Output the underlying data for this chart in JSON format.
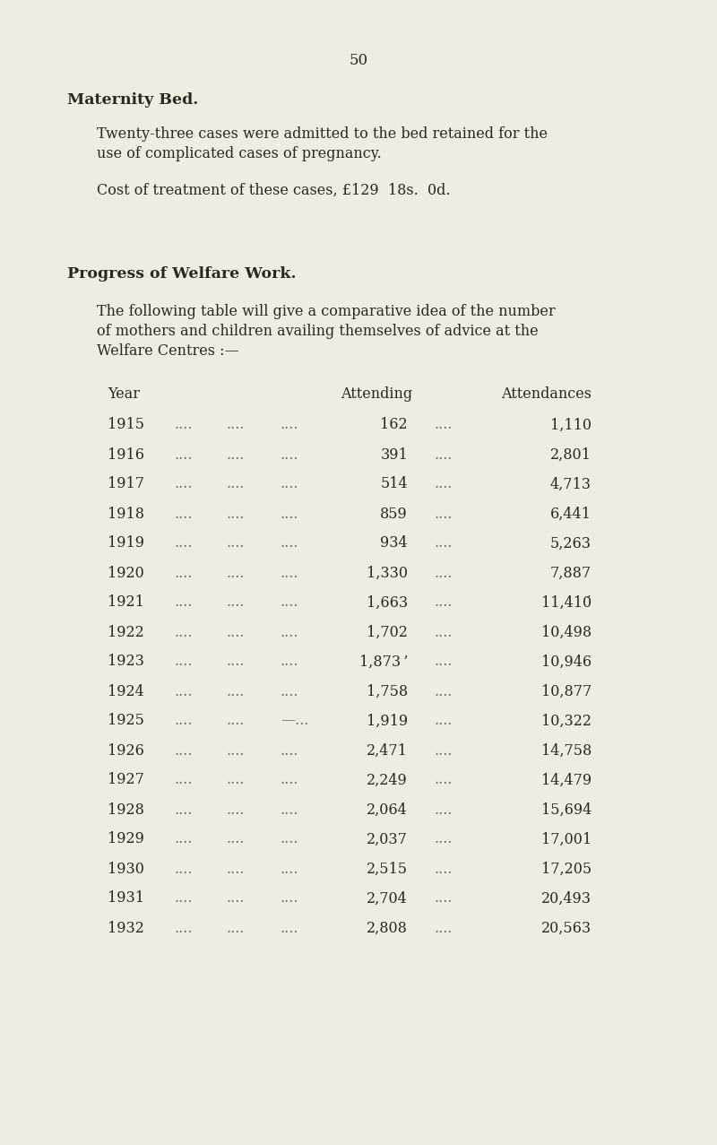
{
  "background_color": "#f0ece0",
  "page_number": "50",
  "section_title": "Maternity Bed.",
  "para1_lines": [
    "Twenty-three cases were admitted to the bed retained for the",
    "use of complicated cases of pregnancy."
  ],
  "para2": "Cost of treatment of these cases, £129  18s.  0d.",
  "section2_title": "Progress of Welfare Work.",
  "para3_lines": [
    "The following table will give a comparative idea of the number",
    "of mothers and children availing themselves of advice at the",
    "Welfare Centres :—"
  ],
  "table_data": [
    {
      "year": "1915",
      "attending": "162",
      "attendances": "1,110"
    },
    {
      "year": "1916",
      "attending": "391",
      "attendances": "2,801"
    },
    {
      "year": "1917",
      "attending": "514",
      "attendances": "4,713"
    },
    {
      "year": "1918",
      "attending": "859",
      "attendances": "6,441"
    },
    {
      "year": "1919",
      "attending": "934",
      "attendances": "5,263"
    },
    {
      "year": "1920",
      "attending": "1,330",
      "attendances": "7,887"
    },
    {
      "year": "1921",
      "attending": "1,663",
      "attendances": "11,410́"
    },
    {
      "year": "1922",
      "attending": "1,702",
      "attendances": "10,498"
    },
    {
      "year": "1923",
      "attending": "1,873 ’",
      "attendances": "10,946"
    },
    {
      "year": "1924",
      "attending": "1,758",
      "attendances": "10,877"
    },
    {
      "year": "1925",
      "attending": "1,919",
      "attendances": "10,322",
      "dots3_special": "—..."
    },
    {
      "year": "1926",
      "attending": "2,471",
      "attendances": "14,758"
    },
    {
      "year": "1927",
      "attending": "2,249",
      "attendances": "14,479"
    },
    {
      "year": "1928",
      "attending": "2,064",
      "attendances": "15,694"
    },
    {
      "year": "1929",
      "attending": "2,037",
      "attendances": "17,001"
    },
    {
      "year": "1930",
      "attending": "2,515",
      "attendances": "17,205"
    },
    {
      "year": "1931",
      "attending": "2,704",
      "attendances": "20,493"
    },
    {
      "year": "1932",
      "attending": "2,808",
      "attendances": "20,563"
    }
  ],
  "text_color": "#2c2820",
  "dots_color": "#7a7060",
  "font_size_body": 11.5,
  "font_size_header": 11.5,
  "font_size_title_bold": 12.5,
  "font_size_page_num": 12.0
}
